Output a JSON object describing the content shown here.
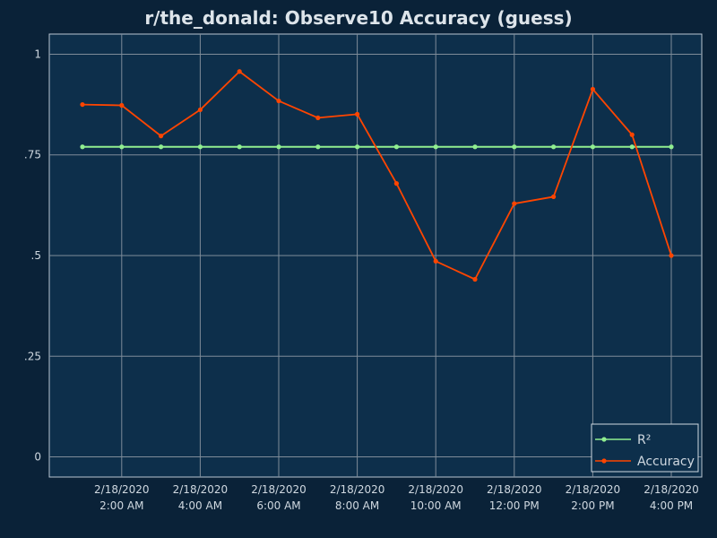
{
  "chart_data": {
    "type": "line",
    "title": "r/the_donald: Observe10 Accuracy (guess)",
    "xlabel": "",
    "ylabel": "",
    "x": [
      "2/18/2020 1:00 AM",
      "2/18/2020 2:00 AM",
      "2/18/2020 3:00 AM",
      "2/18/2020 4:00 AM",
      "2/18/2020 5:00 AM",
      "2/18/2020 6:00 AM",
      "2/18/2020 7:00 AM",
      "2/18/2020 8:00 AM",
      "2/18/2020 9:00 AM",
      "2/18/2020 10:00 AM",
      "2/18/2020 11:00 AM",
      "2/18/2020 12:00 PM",
      "2/18/2020 1:00 PM",
      "2/18/2020 2:00 PM",
      "2/18/2020 3:00 PM",
      "2/18/2020 4:00 PM"
    ],
    "x_ticks": [
      {
        "index": 1,
        "date": "2/18/2020",
        "time": "2:00 AM"
      },
      {
        "index": 3,
        "date": "2/18/2020",
        "time": "4:00 AM"
      },
      {
        "index": 5,
        "date": "2/18/2020",
        "time": "6:00 AM"
      },
      {
        "index": 7,
        "date": "2/18/2020",
        "time": "8:00 AM"
      },
      {
        "index": 9,
        "date": "2/18/2020",
        "time": "10:00 AM"
      },
      {
        "index": 11,
        "date": "2/18/2020",
        "time": "12:00 PM"
      },
      {
        "index": 13,
        "date": "2/18/2020",
        "time": "2:00 PM"
      },
      {
        "index": 15,
        "date": "2/18/2020",
        "time": "4:00 PM"
      }
    ],
    "y_ticks": [
      {
        "value": 0,
        "label": "0"
      },
      {
        "value": 0.25,
        "label": ".25"
      },
      {
        "value": 0.5,
        "label": ".5"
      },
      {
        "value": 0.75,
        "label": ".75"
      },
      {
        "value": 1,
        "label": "1"
      }
    ],
    "ylim": [
      -0.05,
      1.05
    ],
    "grid": true,
    "legend_position": "bottom-right",
    "series": [
      {
        "name": "R²",
        "color": "#90ee90",
        "values": [
          0.77,
          0.77,
          0.77,
          0.77,
          0.77,
          0.77,
          0.77,
          0.77,
          0.77,
          0.77,
          0.77,
          0.77,
          0.77,
          0.77,
          0.77,
          0.77
        ]
      },
      {
        "name": "Accuracy",
        "color": "#ff4500",
        "values": [
          0.875,
          0.873,
          0.797,
          0.862,
          0.957,
          0.884,
          0.842,
          0.851,
          0.679,
          0.486,
          0.441,
          0.629,
          0.646,
          0.913,
          0.8,
          0.5
        ]
      }
    ]
  },
  "colors": {
    "page_background": "#0a2238",
    "plot_background": "#0d2f4b",
    "grid": "#7f8c99",
    "axis_text": "#cfd8e0",
    "title_text": "#dde4ea",
    "legend_border": "#cfd8e0"
  }
}
